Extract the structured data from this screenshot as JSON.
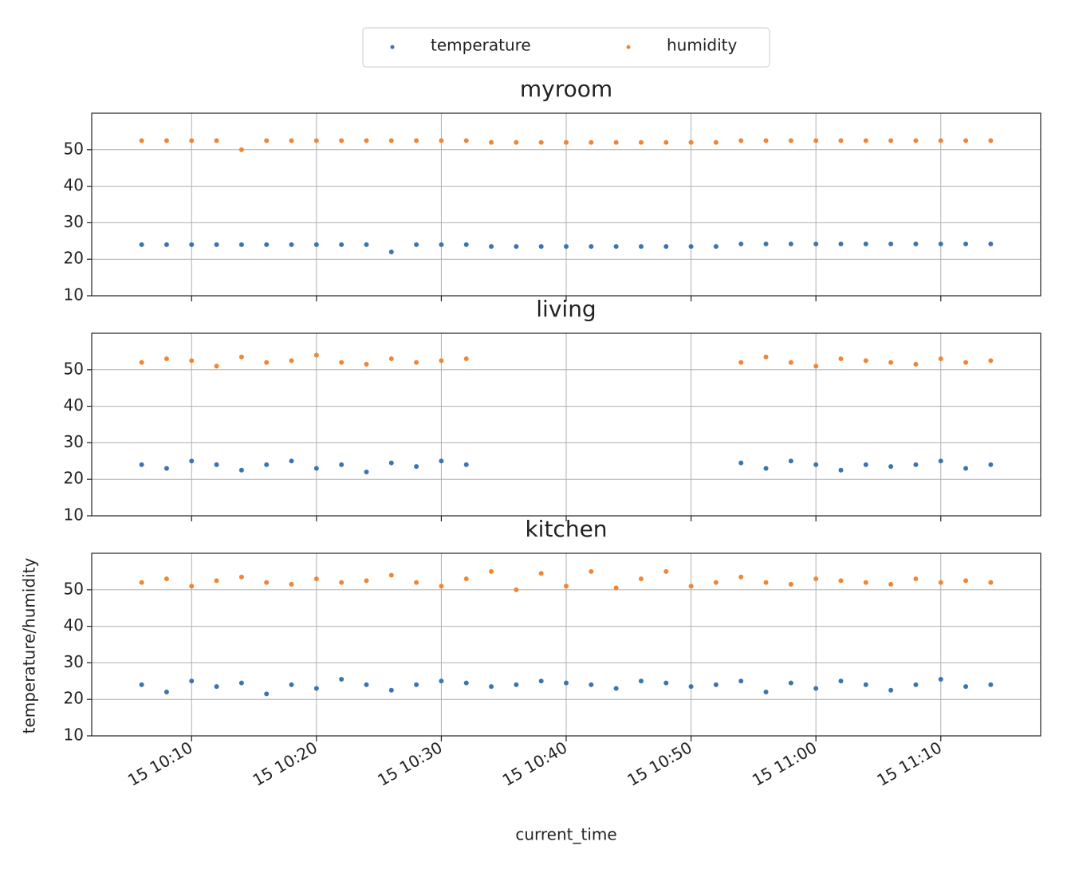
{
  "chart_data": [
    {
      "type": "scatter",
      "title": "myroom",
      "x": [
        "15 10:06",
        "15 10:08",
        "15 10:10",
        "15 10:12",
        "15 10:14",
        "15 10:16",
        "15 10:18",
        "15 10:20",
        "15 10:22",
        "15 10:24",
        "15 10:26",
        "15 10:28",
        "15 10:30",
        "15 10:32",
        "15 10:34",
        "15 10:36",
        "15 10:38",
        "15 10:40",
        "15 10:42",
        "15 10:44",
        "15 10:46",
        "15 10:48",
        "15 10:50",
        "15 10:52",
        "15 10:54",
        "15 10:56",
        "15 10:58",
        "15 11:00",
        "15 11:02",
        "15 11:04",
        "15 11:06",
        "15 11:08",
        "15 11:10",
        "15 11:12",
        "15 11:14"
      ],
      "series": [
        {
          "name": "temperature",
          "color": "#3b75af",
          "values": [
            24,
            24,
            24,
            24,
            24,
            24,
            24,
            24,
            24,
            24,
            22,
            24,
            24,
            24,
            23.5,
            23.5,
            23.5,
            23.5,
            23.5,
            23.5,
            23.5,
            23.5,
            23.5,
            23.5,
            24.2,
            24.2,
            24.2,
            24.2,
            24.2,
            24.2,
            24.2,
            24.2,
            24.2,
            24.2,
            24.2
          ]
        },
        {
          "name": "humidity",
          "color": "#ef8636",
          "values": [
            52.5,
            52.5,
            52.5,
            52.5,
            50,
            52.5,
            52.5,
            52.5,
            52.5,
            52.5,
            52.5,
            52.5,
            52.5,
            52.5,
            52,
            52,
            52,
            52,
            52,
            52,
            52,
            52,
            52,
            52,
            52.5,
            52.5,
            52.5,
            52.5,
            52.5,
            52.5,
            52.5,
            52.5,
            52.5,
            52.5,
            52.5
          ]
        }
      ],
      "xlim": [
        "15 10:02",
        "15 11:18"
      ],
      "ylim": [
        10,
        60
      ],
      "yticks": [
        10,
        20,
        30,
        40,
        50
      ],
      "grid": true
    },
    {
      "type": "scatter",
      "title": "living",
      "x": [
        "15 10:06",
        "15 10:08",
        "15 10:10",
        "15 10:12",
        "15 10:14",
        "15 10:16",
        "15 10:18",
        "15 10:20",
        "15 10:22",
        "15 10:24",
        "15 10:26",
        "15 10:28",
        "15 10:30",
        "15 10:32",
        "15 10:34",
        "15 10:36",
        "15 10:38",
        "15 10:40",
        "15 10:42",
        "15 10:44",
        "15 10:46",
        "15 10:48",
        "15 10:50",
        "15 10:52",
        "15 10:54",
        "15 10:56",
        "15 10:58",
        "15 11:00",
        "15 11:02",
        "15 11:04",
        "15 11:06",
        "15 11:08",
        "15 11:10",
        "15 11:12",
        "15 11:14"
      ],
      "series": [
        {
          "name": "temperature",
          "color": "#3b75af",
          "values": [
            24,
            23,
            25,
            24,
            22.5,
            24,
            25,
            23,
            24,
            22,
            24.5,
            23.5,
            25,
            24,
            null,
            null,
            null,
            null,
            null,
            null,
            null,
            null,
            null,
            null,
            24.5,
            23,
            25,
            24,
            22.5,
            24,
            23.5,
            24,
            25,
            23,
            24
          ]
        },
        {
          "name": "humidity",
          "color": "#ef8636",
          "values": [
            52,
            53,
            52.5,
            51,
            53.5,
            52,
            52.5,
            54,
            52,
            51.5,
            53,
            52,
            52.5,
            53,
            null,
            null,
            null,
            null,
            null,
            null,
            null,
            null,
            null,
            null,
            52,
            53.5,
            52,
            51,
            53,
            52.5,
            52,
            51.5,
            53,
            52,
            52.5
          ]
        }
      ],
      "xlim": [
        "15 10:02",
        "15 11:18"
      ],
      "ylim": [
        10,
        60
      ],
      "yticks": [
        10,
        20,
        30,
        40,
        50
      ],
      "grid": true
    },
    {
      "type": "scatter",
      "title": "kitchen",
      "xlabel": "current_time",
      "ylabel": "temperature/humidity",
      "x": [
        "15 10:06",
        "15 10:08",
        "15 10:10",
        "15 10:12",
        "15 10:14",
        "15 10:16",
        "15 10:18",
        "15 10:20",
        "15 10:22",
        "15 10:24",
        "15 10:26",
        "15 10:28",
        "15 10:30",
        "15 10:32",
        "15 10:34",
        "15 10:36",
        "15 10:38",
        "15 10:40",
        "15 10:42",
        "15 10:44",
        "15 10:46",
        "15 10:48",
        "15 10:50",
        "15 10:52",
        "15 10:54",
        "15 10:56",
        "15 10:58",
        "15 11:00",
        "15 11:02",
        "15 11:04",
        "15 11:06",
        "15 11:08",
        "15 11:10",
        "15 11:12",
        "15 11:14"
      ],
      "series": [
        {
          "name": "temperature",
          "color": "#3b75af",
          "values": [
            24,
            22,
            25,
            23.5,
            24.5,
            21.5,
            24,
            23,
            25.5,
            24,
            22.5,
            24,
            25,
            24.5,
            23.5,
            24,
            25,
            24.5,
            24,
            23,
            25,
            24.5,
            23.5,
            24,
            25,
            22,
            24.5,
            23,
            25,
            24,
            22.5,
            24,
            25.5,
            23.5,
            24
          ]
        },
        {
          "name": "humidity",
          "color": "#ef8636",
          "values": [
            52,
            53,
            51,
            52.5,
            53.5,
            52,
            51.5,
            53,
            52,
            52.5,
            54,
            52,
            51,
            53,
            55,
            50,
            54.5,
            51,
            55,
            50.5,
            53,
            55,
            51,
            52,
            53.5,
            52,
            51.5,
            53,
            52.5,
            52,
            51.5,
            53,
            52,
            52.5,
            52
          ]
        }
      ],
      "xlim": [
        "15 10:02",
        "15 11:18"
      ],
      "xticks": [
        "15 10:10",
        "15 10:20",
        "15 10:30",
        "15 10:40",
        "15 10:50",
        "15 11:00",
        "15 11:10"
      ],
      "ylim": [
        10,
        60
      ],
      "yticks": [
        10,
        20,
        30,
        40,
        50
      ],
      "grid": true
    }
  ]
}
